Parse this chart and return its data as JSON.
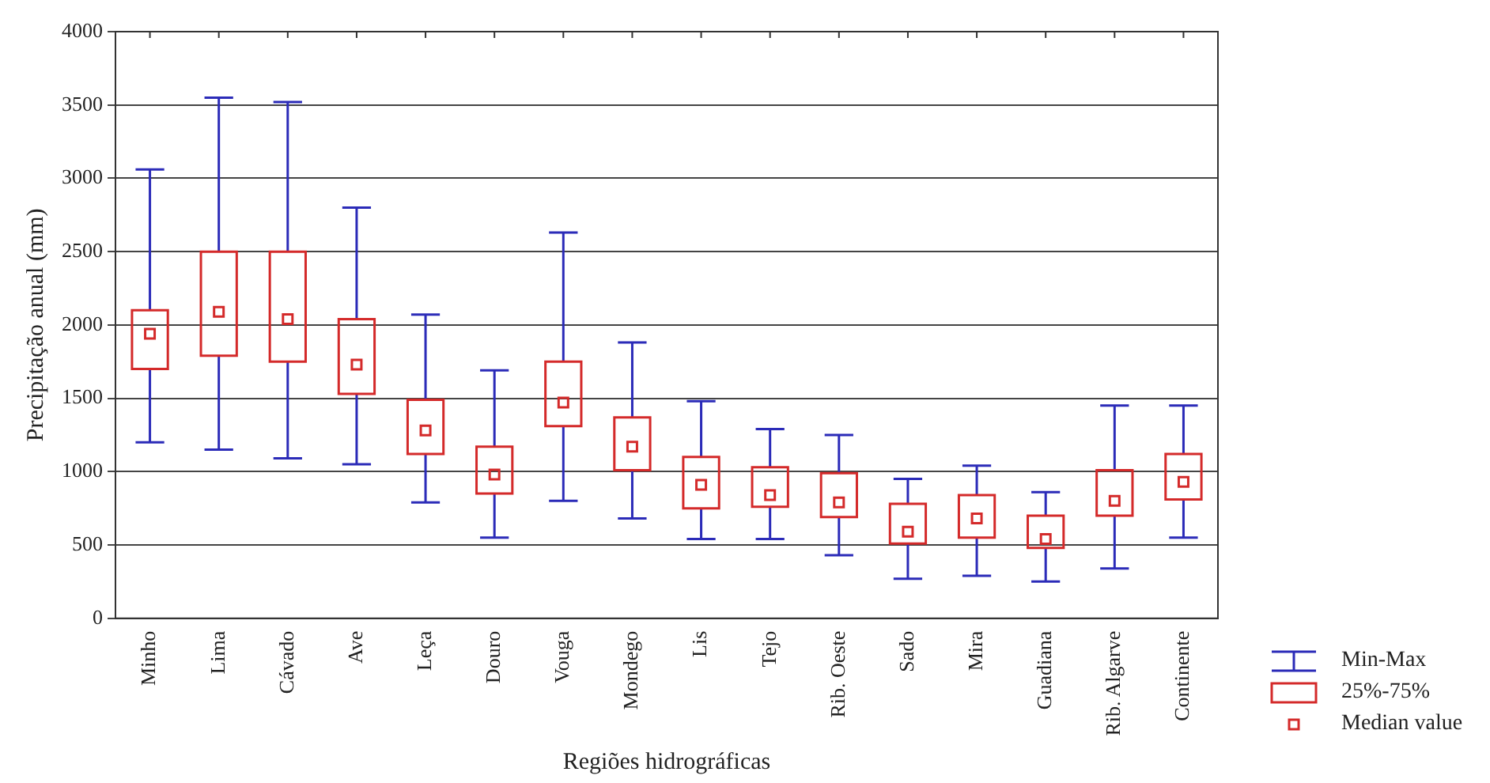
{
  "chart_data": {
    "type": "box",
    "xlabel": "Regiões hidrográficas",
    "ylabel": "Precipitação anual (mm)",
    "categories": [
      "Minho",
      "Lima",
      "Cávado",
      "Ave",
      "Leça",
      "Douro",
      "Vouga",
      "Mondego",
      "Lis",
      "Tejo",
      "Rib. Oeste",
      "Sado",
      "Mira",
      "Guadiana",
      "Rib. Algarve",
      "Continente"
    ],
    "series": [
      {
        "color": "#d42a2a",
        "boxes": [
          {
            "low": 1200,
            "q1": 1700,
            "median": 1940,
            "q3": 2100,
            "high": 3060
          },
          {
            "low": 1150,
            "q1": 1790,
            "median": 2090,
            "q3": 2500,
            "high": 3550
          },
          {
            "low": 1090,
            "q1": 1750,
            "median": 2040,
            "q3": 2500,
            "high": 3520
          },
          {
            "low": 1050,
            "q1": 1530,
            "median": 1730,
            "q3": 2040,
            "high": 2800
          },
          {
            "low": 790,
            "q1": 1120,
            "median": 1280,
            "q3": 1490,
            "high": 2070
          },
          {
            "low": 550,
            "q1": 850,
            "median": 980,
            "q3": 1170,
            "high": 1690
          },
          {
            "low": 800,
            "q1": 1310,
            "median": 1470,
            "q3": 1750,
            "high": 2630
          },
          {
            "low": 680,
            "q1": 1010,
            "median": 1170,
            "q3": 1370,
            "high": 1880
          },
          {
            "low": 540,
            "q1": 750,
            "median": 910,
            "q3": 1100,
            "high": 1480
          },
          {
            "low": 540,
            "q1": 760,
            "median": 840,
            "q3": 1030,
            "high": 1290
          },
          {
            "low": 430,
            "q1": 690,
            "median": 790,
            "q3": 990,
            "high": 1250
          },
          {
            "low": 270,
            "q1": 510,
            "median": 590,
            "q3": 780,
            "high": 950
          },
          {
            "low": 290,
            "q1": 550,
            "median": 680,
            "q3": 840,
            "high": 1040
          },
          {
            "low": 250,
            "q1": 480,
            "median": 540,
            "q3": 700,
            "high": 860
          },
          {
            "low": 340,
            "q1": 700,
            "median": 800,
            "q3": 1010,
            "high": 1450
          },
          {
            "low": 550,
            "q1": 810,
            "median": 930,
            "q3": 1120,
            "high": 1450
          }
        ]
      }
    ],
    "ylim": [
      0,
      4000
    ],
    "yticks": [
      0,
      500,
      1000,
      1500,
      2000,
      2500,
      3000,
      3500,
      4000
    ],
    "grid": "y",
    "annotations": [
      "Min-Max",
      "25%-75%",
      "Median value"
    ]
  }
}
